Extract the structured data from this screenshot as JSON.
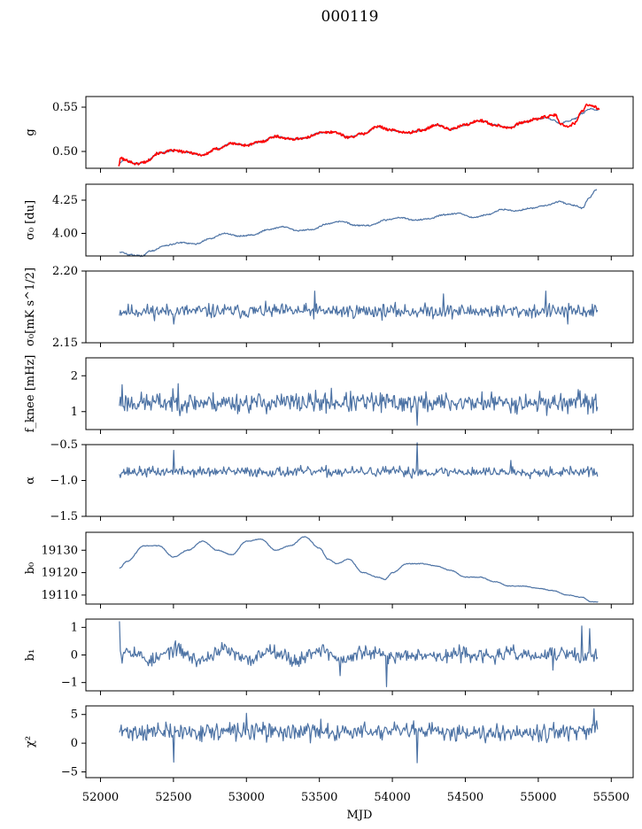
{
  "figure": {
    "title": "000119"
  },
  "chart_data": {
    "type": "line",
    "shared_x": {
      "label": "MJD",
      "range": [
        51900,
        55650
      ],
      "ticks": [
        52000,
        52500,
        53000,
        53500,
        54000,
        54500,
        55000,
        55500
      ],
      "data_range": [
        52130,
        55410
      ]
    },
    "panels": [
      {
        "id": "g",
        "ylabel": "g",
        "ylim": [
          0.481,
          0.562
        ],
        "yticks": [
          0.5,
          0.55
        ],
        "ytick_labels": [
          "0.50",
          "0.55"
        ],
        "series": [
          {
            "color": "#4c72a4",
            "line_width": 1.2,
            "kind": "smooth",
            "points": [
              [
                52130,
                0.487
              ],
              [
                52160,
                0.491
              ],
              [
                52250,
                0.486
              ],
              [
                52300,
                0.488
              ],
              [
                52400,
                0.498
              ],
              [
                52500,
                0.501
              ],
              [
                52600,
                0.499
              ],
              [
                52700,
                0.496
              ],
              [
                52800,
                0.503
              ],
              [
                52900,
                0.509
              ],
              [
                53000,
                0.507
              ],
              [
                53100,
                0.511
              ],
              [
                53200,
                0.517
              ],
              [
                53300,
                0.514
              ],
              [
                53400,
                0.515
              ],
              [
                53500,
                0.521
              ],
              [
                53600,
                0.522
              ],
              [
                53700,
                0.516
              ],
              [
                53800,
                0.52
              ],
              [
                53900,
                0.528
              ],
              [
                54000,
                0.524
              ],
              [
                54100,
                0.521
              ],
              [
                54200,
                0.524
              ],
              [
                54300,
                0.53
              ],
              [
                54400,
                0.525
              ],
              [
                54500,
                0.53
              ],
              [
                54600,
                0.535
              ],
              [
                54700,
                0.53
              ],
              [
                54800,
                0.527
              ],
              [
                54900,
                0.533
              ],
              [
                55000,
                0.537
              ],
              [
                55050,
                0.538
              ],
              [
                55100,
                0.536
              ],
              [
                55150,
                0.531
              ],
              [
                55200,
                0.534
              ],
              [
                55250,
                0.537
              ],
              [
                55300,
                0.543
              ],
              [
                55350,
                0.548
              ],
              [
                55410,
                0.547
              ]
            ],
            "noise": 0.0008
          },
          {
            "color": "#ff0000",
            "line_width": 1.6,
            "kind": "smooth",
            "points": [
              [
                52125,
                0.484
              ],
              [
                52140,
                0.493
              ],
              [
                52170,
                0.49
              ],
              [
                52250,
                0.486
              ],
              [
                52300,
                0.488
              ],
              [
                52400,
                0.498
              ],
              [
                52500,
                0.501
              ],
              [
                52600,
                0.499
              ],
              [
                52700,
                0.496
              ],
              [
                52800,
                0.503
              ],
              [
                52900,
                0.509
              ],
              [
                53000,
                0.507
              ],
              [
                53100,
                0.511
              ],
              [
                53200,
                0.517
              ],
              [
                53300,
                0.514
              ],
              [
                53400,
                0.515
              ],
              [
                53500,
                0.521
              ],
              [
                53600,
                0.522
              ],
              [
                53700,
                0.516
              ],
              [
                53800,
                0.52
              ],
              [
                53900,
                0.528
              ],
              [
                54000,
                0.524
              ],
              [
                54100,
                0.521
              ],
              [
                54200,
                0.524
              ],
              [
                54300,
                0.53
              ],
              [
                54400,
                0.525
              ],
              [
                54500,
                0.53
              ],
              [
                54600,
                0.535
              ],
              [
                54700,
                0.53
              ],
              [
                54800,
                0.527
              ],
              [
                54900,
                0.533
              ],
              [
                55000,
                0.537
              ],
              [
                55050,
                0.539
              ],
              [
                55120,
                0.541
              ],
              [
                55150,
                0.531
              ],
              [
                55200,
                0.528
              ],
              [
                55250,
                0.532
              ],
              [
                55300,
                0.546
              ],
              [
                55340,
                0.553
              ],
              [
                55380,
                0.551
              ],
              [
                55420,
                0.547
              ]
            ],
            "noise": 0.0015
          }
        ]
      },
      {
        "id": "sigma0-du",
        "ylabel": "σ₀ [du]",
        "ylim": [
          3.83,
          4.37
        ],
        "yticks": [
          4.0,
          4.25
        ],
        "ytick_labels": [
          "4.00",
          "4.25"
        ],
        "series": [
          {
            "color": "#4c72a4",
            "line_width": 1.2,
            "kind": "smooth",
            "points": [
              [
                52130,
                3.86
              ],
              [
                52200,
                3.84
              ],
              [
                52280,
                3.83
              ],
              [
                52350,
                3.87
              ],
              [
                52450,
                3.91
              ],
              [
                52550,
                3.93
              ],
              [
                52650,
                3.92
              ],
              [
                52750,
                3.96
              ],
              [
                52850,
                4.0
              ],
              [
                52950,
                3.98
              ],
              [
                53050,
                3.99
              ],
              [
                53150,
                4.03
              ],
              [
                53250,
                4.05
              ],
              [
                53350,
                4.02
              ],
              [
                53450,
                4.03
              ],
              [
                53550,
                4.07
              ],
              [
                53650,
                4.09
              ],
              [
                53750,
                4.06
              ],
              [
                53850,
                4.06
              ],
              [
                53950,
                4.1
              ],
              [
                54050,
                4.12
              ],
              [
                54150,
                4.1
              ],
              [
                54250,
                4.11
              ],
              [
                54350,
                4.14
              ],
              [
                54450,
                4.15
              ],
              [
                54550,
                4.12
              ],
              [
                54650,
                4.14
              ],
              [
                54750,
                4.18
              ],
              [
                54850,
                4.17
              ],
              [
                54950,
                4.19
              ],
              [
                55050,
                4.21
              ],
              [
                55150,
                4.24
              ],
              [
                55200,
                4.22
              ],
              [
                55250,
                4.21
              ],
              [
                55300,
                4.19
              ],
              [
                55350,
                4.27
              ],
              [
                55400,
                4.33
              ]
            ],
            "noise": 0.005
          }
        ]
      },
      {
        "id": "sigma0-mk",
        "ylabel": "σ₀[mK s^1/2]",
        "ylim": [
          2.15,
          2.2
        ],
        "yticks": [
          2.15,
          2.2
        ],
        "ytick_labels": [
          "2.15",
          "2.20"
        ],
        "series": [
          {
            "color": "#4c72a4",
            "line_width": 1.2,
            "kind": "noisy",
            "base": 2.172,
            "noise": 0.0035,
            "seed": 11,
            "spikes": [
              [
                52500,
                2.163
              ],
              [
                53470,
                2.186
              ],
              [
                54350,
                2.184
              ],
              [
                55050,
                2.186
              ],
              [
                55200,
                2.163
              ]
            ]
          }
        ]
      },
      {
        "id": "fknee",
        "ylabel": "f_knee [mHz]",
        "ylim": [
          0.5,
          2.5
        ],
        "yticks": [
          1,
          2
        ],
        "ytick_labels": [
          "1",
          "2"
        ],
        "series": [
          {
            "color": "#4c72a4",
            "line_width": 1.2,
            "kind": "noisy",
            "base": 1.25,
            "noise": 0.2,
            "seed": 23,
            "spikes": [
              [
                52150,
                1.75
              ],
              [
                52530,
                1.78
              ],
              [
                54170,
                0.62
              ],
              [
                53580,
                1.65
              ],
              [
                55400,
                1.02
              ]
            ]
          }
        ]
      },
      {
        "id": "alpha",
        "ylabel": "α",
        "ylim": [
          -1.5,
          -0.5
        ],
        "yticks": [
          -1.5,
          -1.0,
          -0.5
        ],
        "ytick_labels": [
          "−1.5",
          "−1.0",
          "−0.5"
        ],
        "series": [
          {
            "color": "#4c72a4",
            "line_width": 1.2,
            "kind": "noisy",
            "base": -0.88,
            "noise": 0.05,
            "seed": 37,
            "spikes": [
              [
                52500,
                -0.58
              ],
              [
                54170,
                -0.47
              ],
              [
                54130,
                -0.95
              ],
              [
                54810,
                -0.72
              ]
            ]
          }
        ]
      },
      {
        "id": "b0",
        "ylabel": "b₀",
        "ylim": [
          19106,
          19138
        ],
        "yticks": [
          19110,
          19120,
          19130
        ],
        "ytick_labels": [
          "19110",
          "19120",
          "19130"
        ],
        "series": [
          {
            "color": "#4c72a4",
            "line_width": 1.2,
            "kind": "smooth",
            "points": [
              [
                52130,
                19122
              ],
              [
                52180,
                19125
              ],
              [
                52300,
                19132
              ],
              [
                52400,
                19132
              ],
              [
                52500,
                19127
              ],
              [
                52600,
                19130
              ],
              [
                52700,
                19134
              ],
              [
                52800,
                19130
              ],
              [
                52900,
                19128
              ],
              [
                53000,
                19134
              ],
              [
                53100,
                19135
              ],
              [
                53200,
                19130
              ],
              [
                53300,
                19132
              ],
              [
                53400,
                19136
              ],
              [
                53500,
                19131
              ],
              [
                53560,
                19126
              ],
              [
                53620,
                19124
              ],
              [
                53700,
                19126
              ],
              [
                53800,
                19120
              ],
              [
                53900,
                19118
              ],
              [
                53950,
                19117
              ],
              [
                54000,
                19120
              ],
              [
                54100,
                19124
              ],
              [
                54200,
                19124
              ],
              [
                54300,
                19123
              ],
              [
                54400,
                19121
              ],
              [
                54500,
                19118
              ],
              [
                54600,
                19118
              ],
              [
                54700,
                19116
              ],
              [
                54800,
                19114
              ],
              [
                54900,
                19114
              ],
              [
                55000,
                19113
              ],
              [
                55100,
                19112
              ],
              [
                55200,
                19110
              ],
              [
                55300,
                19109
              ],
              [
                55360,
                19107
              ],
              [
                55410,
                19107
              ]
            ],
            "noise": 0.15
          }
        ]
      },
      {
        "id": "b1",
        "ylabel": "b₁",
        "ylim": [
          -1.3,
          1.3
        ],
        "yticks": [
          -1,
          0,
          1
        ],
        "ytick_labels": [
          "−1",
          "0",
          "1"
        ],
        "series": [
          {
            "color": "#4c72a4",
            "line_width": 1.2,
            "kind": "noisy",
            "base": 0.0,
            "noise": 0.18,
            "seed": 53,
            "wave": 0.2,
            "spikes": [
              [
                52130,
                1.22
              ],
              [
                52150,
                -0.3
              ],
              [
                53960,
                -1.15
              ],
              [
                53640,
                -0.75
              ],
              [
                55300,
                1.05
              ],
              [
                55350,
                0.95
              ],
              [
                55100,
                -0.55
              ]
            ]
          }
        ]
      },
      {
        "id": "chi2",
        "ylabel": "χ²",
        "ylim": [
          -6,
          6.5
        ],
        "yticks": [
          -5,
          0,
          5
        ],
        "ytick_labels": [
          "−5",
          "0",
          "5"
        ],
        "series": [
          {
            "color": "#4c72a4",
            "line_width": 1.2,
            "kind": "noisy",
            "base": 2.0,
            "noise": 1.1,
            "seed": 71,
            "spikes": [
              [
                52500,
                -3.3
              ],
              [
                54170,
                -3.4
              ],
              [
                55380,
                6.0
              ],
              [
                53000,
                5.2
              ]
            ]
          }
        ]
      }
    ]
  }
}
